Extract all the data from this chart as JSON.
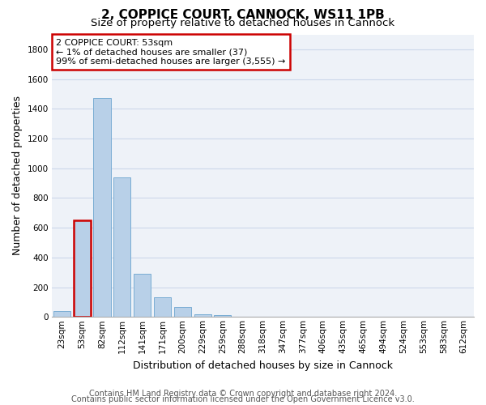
{
  "title": "2, COPPICE COURT, CANNOCK, WS11 1PB",
  "subtitle": "Size of property relative to detached houses in Cannock",
  "xlabel": "Distribution of detached houses by size in Cannock",
  "ylabel": "Number of detached properties",
  "categories": [
    "23sqm",
    "53sqm",
    "82sqm",
    "112sqm",
    "141sqm",
    "171sqm",
    "200sqm",
    "229sqm",
    "259sqm",
    "288sqm",
    "318sqm",
    "347sqm",
    "377sqm",
    "406sqm",
    "435sqm",
    "465sqm",
    "494sqm",
    "524sqm",
    "553sqm",
    "583sqm",
    "612sqm"
  ],
  "values": [
    37,
    650,
    1470,
    940,
    290,
    130,
    65,
    20,
    10,
    0,
    0,
    0,
    0,
    0,
    0,
    0,
    0,
    0,
    0,
    0,
    0
  ],
  "bar_color": "#b8d0e8",
  "bar_edge_color": "#7aadd4",
  "highlight_index": 1,
  "highlight_bar_edge_color": "#cc0000",
  "annotation_text": "2 COPPICE COURT: 53sqm\n← 1% of detached houses are smaller (37)\n99% of semi-detached houses are larger (3,555) →",
  "annotation_box_edge_color": "#cc0000",
  "ylim": [
    0,
    1900
  ],
  "yticks": [
    0,
    200,
    400,
    600,
    800,
    1000,
    1200,
    1400,
    1600,
    1800
  ],
  "footer_line1": "Contains HM Land Registry data © Crown copyright and database right 2024.",
  "footer_line2": "Contains public sector information licensed under the Open Government Licence v3.0.",
  "grid_color": "#ccd8ea",
  "bg_color": "#eef2f8",
  "title_fontsize": 11,
  "subtitle_fontsize": 9.5,
  "axis_label_fontsize": 9,
  "tick_fontsize": 7.5,
  "footer_fontsize": 7,
  "ann_fontsize": 8
}
